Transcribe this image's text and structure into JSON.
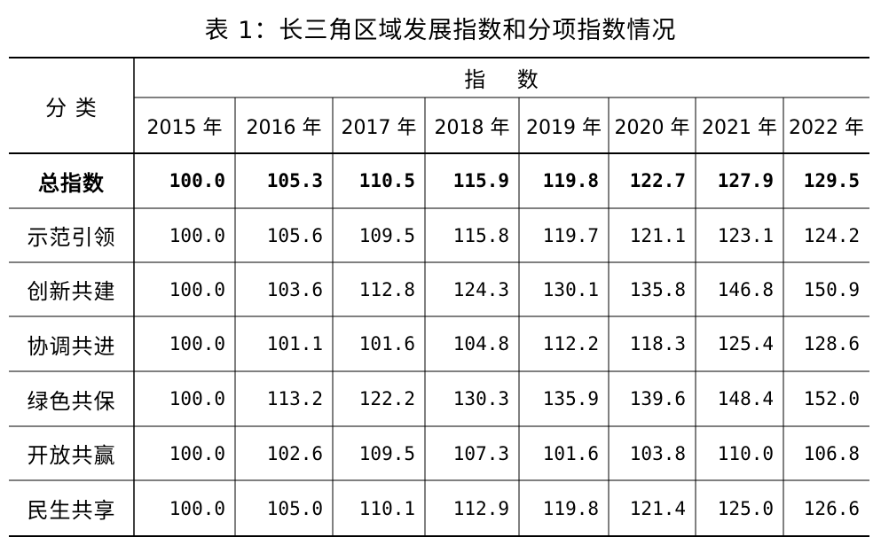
{
  "title": "表 1：长三角区域发展指数和分项指数情况",
  "header": {
    "category_label": "分 类",
    "index_label": "指    数",
    "years": [
      "2015 年",
      "2016 年",
      "2017 年",
      "2018 年",
      "2019 年",
      "2020 年",
      "2021 年",
      "2022 年"
    ]
  },
  "rows": [
    {
      "name": "总指数",
      "values": [
        "100.0",
        "105.3",
        "110.5",
        "115.9",
        "119.8",
        "122.7",
        "127.9",
        "129.5"
      ],
      "bold": true
    },
    {
      "name": "示范引领",
      "values": [
        "100.0",
        "105.6",
        "109.5",
        "115.8",
        "119.7",
        "121.1",
        "123.1",
        "124.2"
      ]
    },
    {
      "name": "创新共建",
      "values": [
        "100.0",
        "103.6",
        "112.8",
        "124.3",
        "130.1",
        "135.8",
        "146.8",
        "150.9"
      ]
    },
    {
      "name": "协调共进",
      "values": [
        "100.0",
        "101.1",
        "101.6",
        "104.8",
        "112.2",
        "118.3",
        "125.4",
        "128.6"
      ]
    },
    {
      "name": "绿色共保",
      "values": [
        "100.0",
        "113.2",
        "122.2",
        "130.3",
        "135.9",
        "139.6",
        "148.4",
        "152.0"
      ]
    },
    {
      "name": "开放共赢",
      "values": [
        "100.0",
        "102.6",
        "109.5",
        "107.3",
        "101.6",
        "103.8",
        "110.0",
        "106.8"
      ]
    },
    {
      "name": "民生共享",
      "values": [
        "100.0",
        "105.0",
        "110.1",
        "112.9",
        "119.8",
        "121.4",
        "125.0",
        "126.6"
      ]
    }
  ]
}
